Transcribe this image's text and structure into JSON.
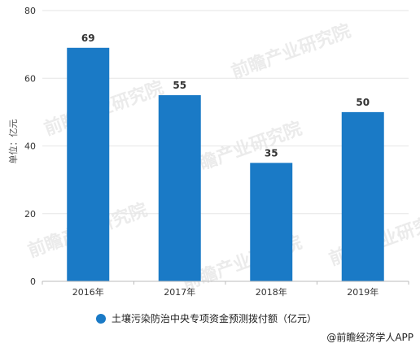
{
  "chart_data": {
    "type": "bar",
    "categories": [
      "2016年",
      "2017年",
      "2018年",
      "2019年"
    ],
    "values": [
      69,
      55,
      35,
      50
    ],
    "data_labels": [
      "69",
      "55",
      "35",
      "50"
    ],
    "ylabel": "单位：亿元",
    "xlabel": "",
    "ylim": [
      0,
      80
    ],
    "yticks": [
      0,
      20,
      40,
      60,
      80
    ],
    "ytick_labels": [
      "0",
      "20",
      "40",
      "60",
      "80"
    ],
    "grid": true,
    "legend": {
      "position": "bottom",
      "entries": [
        {
          "label": "土壤污染防治中央专项资金预测拨付额（亿元）",
          "color": "#1a7ac6"
        }
      ]
    },
    "bar_color": "#1a7ac6"
  },
  "source": "@前瞻经济学人APP",
  "watermark": "前瞻产业研究院"
}
